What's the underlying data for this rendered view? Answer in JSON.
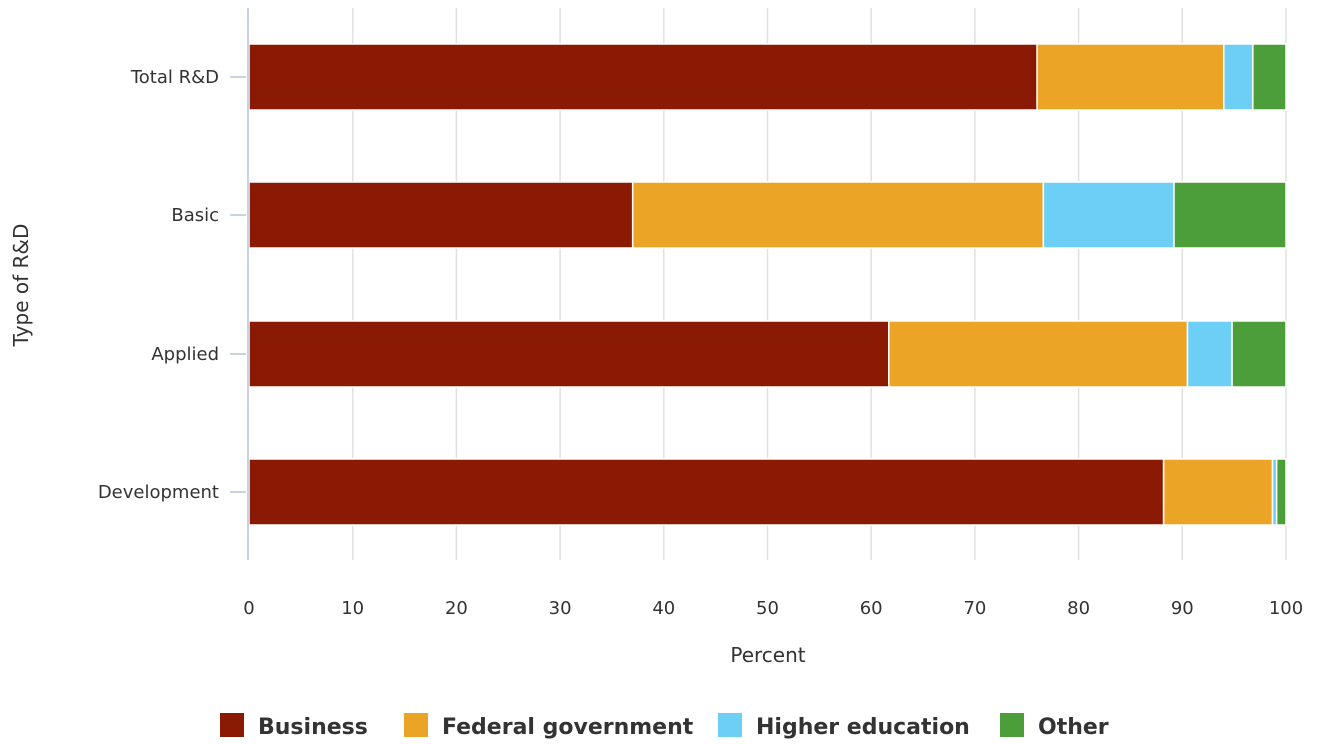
{
  "chart_data": {
    "type": "bar",
    "orientation": "horizontal",
    "stacked": true,
    "title": "",
    "xlabel": "Percent",
    "ylabel": "Type of R&D",
    "xlim": [
      0,
      100
    ],
    "xticks": [
      0,
      10,
      20,
      30,
      40,
      50,
      60,
      70,
      80,
      90,
      100
    ],
    "grid": true,
    "legend_position": "bottom",
    "categories": [
      "Total R&D",
      "Basic",
      "Applied",
      "Development"
    ],
    "series": [
      {
        "name": "Business",
        "color": "#8b1a04",
        "values": [
          76.0,
          37.0,
          61.7,
          88.2
        ]
      },
      {
        "name": "Federal government",
        "color": "#eca427",
        "values": [
          18.0,
          39.6,
          28.8,
          10.5
        ]
      },
      {
        "name": "Higher education",
        "color": "#6dcff6",
        "values": [
          2.8,
          12.6,
          4.3,
          0.4
        ]
      },
      {
        "name": "Other",
        "color": "#4c9e3a",
        "values": [
          3.2,
          10.8,
          5.2,
          0.9
        ]
      }
    ]
  }
}
